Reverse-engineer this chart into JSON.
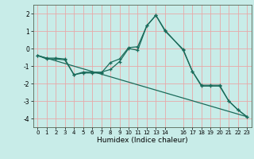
{
  "xlabel": "Humidex (Indice chaleur)",
  "bg_color": "#c8ece8",
  "grid_color": "#e8a8a8",
  "line_color": "#1a6b5a",
  "xlim": [
    -0.5,
    23.5
  ],
  "ylim": [
    -4.5,
    2.5
  ],
  "xticks": [
    0,
    1,
    2,
    3,
    4,
    5,
    6,
    7,
    8,
    9,
    10,
    11,
    12,
    13,
    14,
    16,
    17,
    18,
    19,
    20,
    21,
    22,
    23
  ],
  "yticks": [
    -4,
    -3,
    -2,
    -1,
    0,
    1,
    2
  ],
  "line1_x": [
    0,
    1,
    2,
    3,
    4,
    5,
    6,
    7,
    8,
    9,
    10,
    11,
    12,
    13,
    14,
    16,
    17,
    18,
    19,
    20,
    21,
    22,
    23
  ],
  "line1_y": [
    -0.4,
    -0.6,
    -0.6,
    -0.65,
    -1.5,
    -1.4,
    -1.4,
    -1.4,
    -0.8,
    -0.6,
    0.05,
    0.1,
    1.3,
    1.9,
    1.0,
    -0.05,
    -1.3,
    -2.1,
    -2.1,
    -2.1,
    -3.0,
    -3.5,
    -3.9
  ],
  "line2_x": [
    0,
    1,
    2,
    3,
    4,
    5,
    6,
    7,
    8,
    9,
    10,
    11,
    12,
    13,
    14,
    16,
    17,
    18,
    19,
    20,
    21,
    22,
    23
  ],
  "line2_y": [
    -0.4,
    -0.55,
    -0.55,
    -0.6,
    -1.5,
    -1.35,
    -1.35,
    -1.35,
    -1.2,
    -0.75,
    0.0,
    -0.1,
    1.3,
    1.9,
    1.05,
    -0.1,
    -1.3,
    -2.15,
    -2.15,
    -2.15,
    -3.0,
    -3.5,
    -3.9
  ],
  "line3_x": [
    0,
    23
  ],
  "line3_y": [
    -0.4,
    -3.9
  ]
}
